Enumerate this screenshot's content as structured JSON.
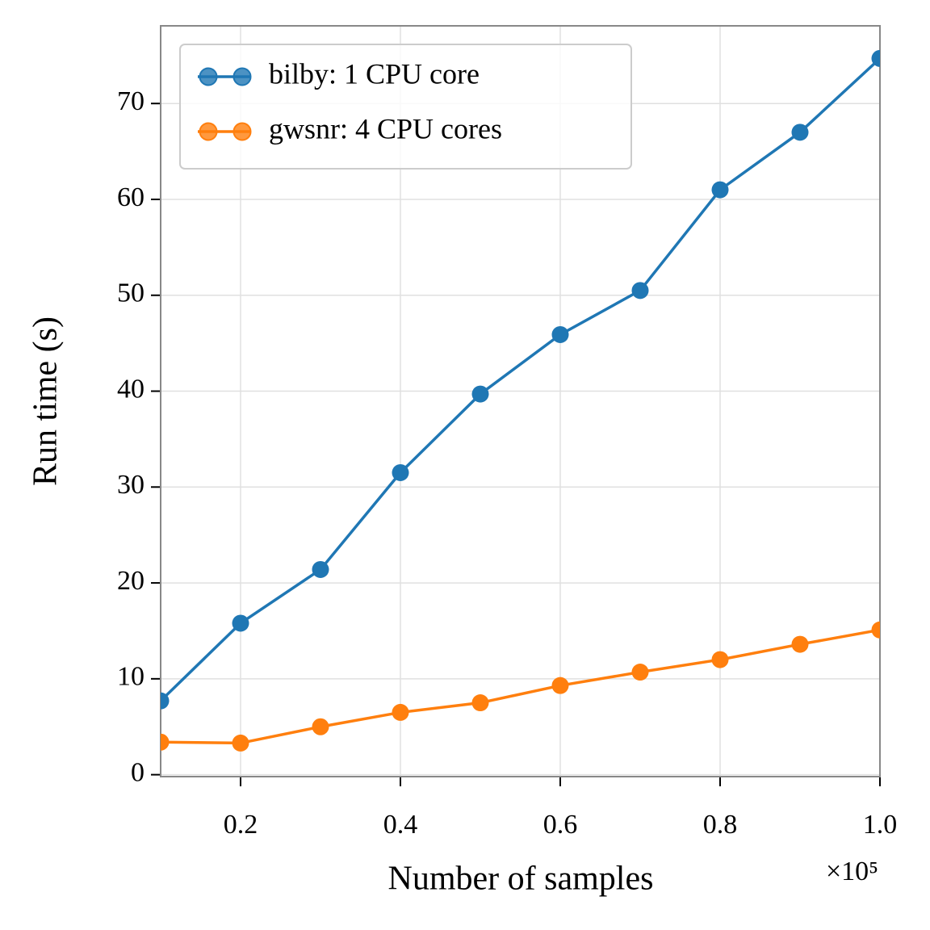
{
  "chart_data": {
    "type": "line",
    "xlabel": "Number of samples",
    "ylabel": "Run time (s)",
    "x_offset_text": "×10⁵",
    "x": [
      0.1,
      0.2,
      0.3,
      0.4,
      0.5,
      0.6,
      0.7,
      0.8,
      0.9,
      1.0
    ],
    "series": [
      {
        "name": "bilby: 1 CPU core",
        "color": "#1f77b4",
        "values": [
          7.7,
          15.8,
          21.4,
          31.5,
          39.7,
          45.9,
          50.5,
          61.0,
          67.0,
          74.7
        ]
      },
      {
        "name": "gwsnr: 4 CPU cores",
        "color": "#ff7f0e",
        "values": [
          3.4,
          3.3,
          5.0,
          6.5,
          7.5,
          9.3,
          10.7,
          12.0,
          13.6,
          15.1
        ]
      }
    ],
    "xlim": [
      0.1,
      1.0
    ],
    "xticks": [
      0.2,
      0.4,
      0.6,
      0.8,
      {
        "value": 1.0,
        "label": "1.0"
      }
    ],
    "ylim": [
      -0.2,
      78.1
    ],
    "yticks": [
      0,
      10,
      20,
      30,
      40,
      50,
      60,
      70
    ],
    "grid": true,
    "legend": "upper left"
  }
}
